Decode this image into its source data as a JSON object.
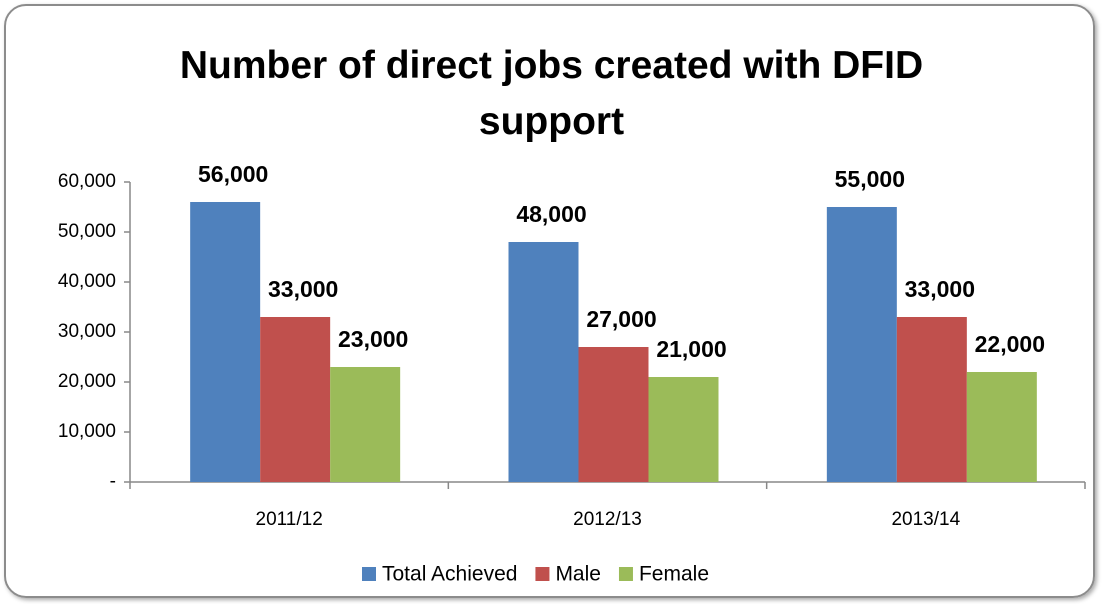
{
  "chart_data": {
    "type": "bar",
    "title": "Number of direct jobs created with DFID support",
    "categories": [
      "2011/12",
      "2012/13",
      "2013/14"
    ],
    "series": [
      {
        "name": "Total Achieved",
        "color": "#4f81bd",
        "values": [
          56000,
          48000,
          55000
        ],
        "value_labels": [
          "56,000",
          "48,000",
          "55,000"
        ]
      },
      {
        "name": "Male",
        "color": "#c0504d",
        "values": [
          33000,
          27000,
          33000
        ],
        "value_labels": [
          "33,000",
          "27,000",
          "33,000"
        ]
      },
      {
        "name": "Female",
        "color": "#9bbb59",
        "values": [
          23000,
          21000,
          22000
        ],
        "value_labels": [
          "23,000",
          "21,000",
          "22,000"
        ]
      }
    ],
    "ylim": [
      0,
      60000
    ],
    "yticks": [
      {
        "value": 0,
        "label": "-"
      },
      {
        "value": 10000,
        "label": "10,000"
      },
      {
        "value": 20000,
        "label": "20,000"
      },
      {
        "value": 30000,
        "label": "30,000"
      },
      {
        "value": 40000,
        "label": "40,000"
      },
      {
        "value": 50000,
        "label": "50,000"
      },
      {
        "value": 60000,
        "label": "60,000"
      }
    ],
    "legend": "bottom",
    "grid": false
  }
}
